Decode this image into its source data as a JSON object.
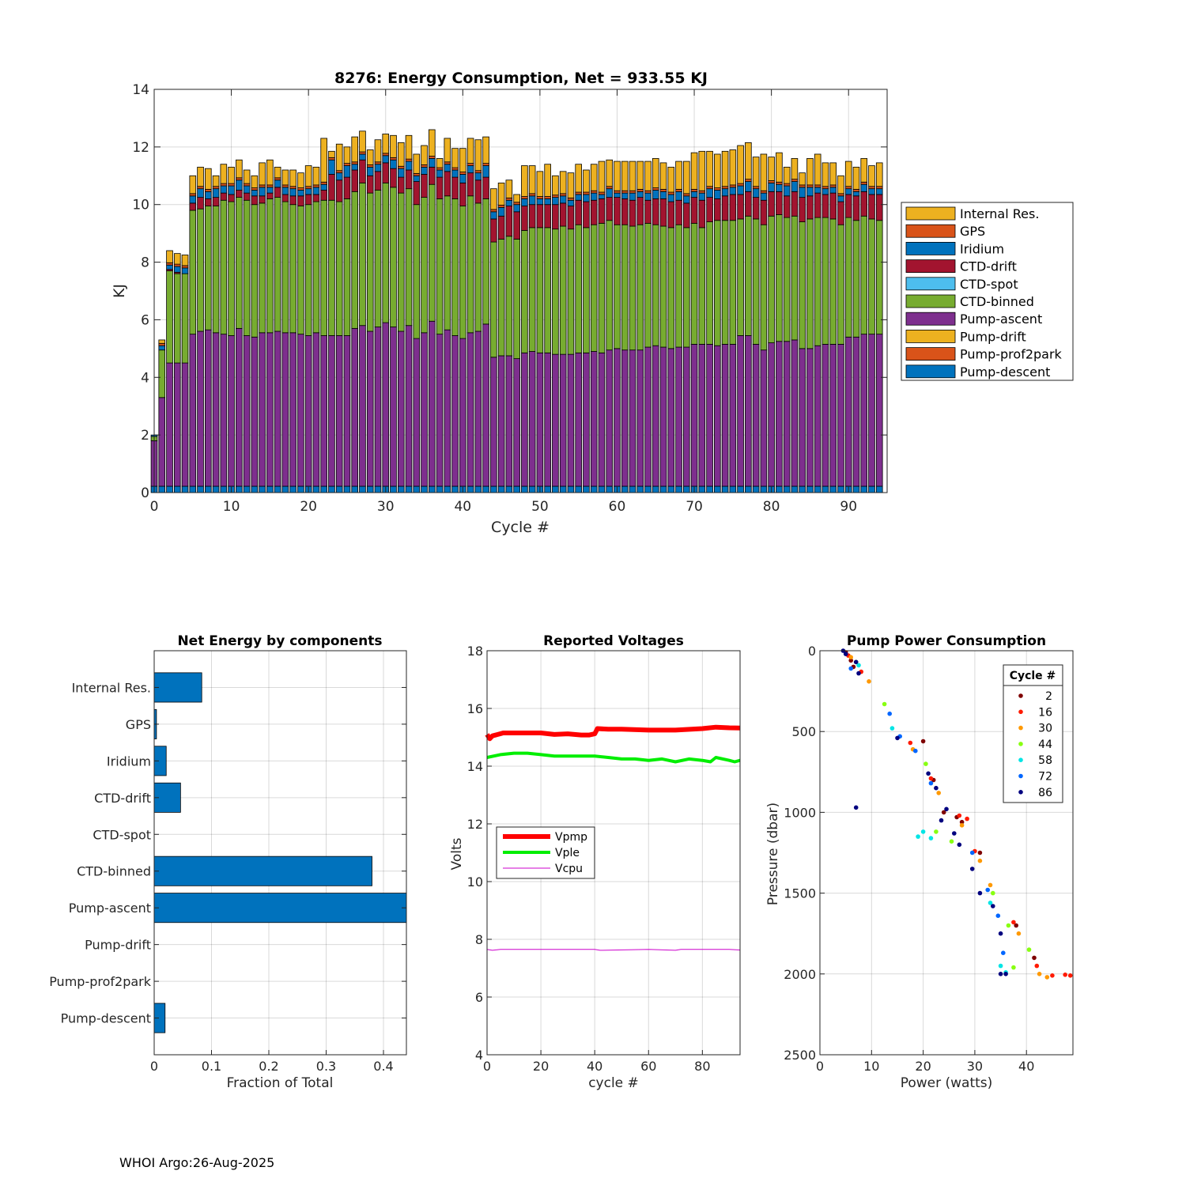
{
  "footer": "WHOI Argo:26-Aug-2025",
  "chart_data": [
    {
      "type": "stacked-bar",
      "title": "8276: Energy Consumption,  Net = 933.55 KJ",
      "xlabel": "Cycle #",
      "ylabel": "KJ",
      "xlim": [
        0,
        95
      ],
      "ylim": [
        0,
        14
      ],
      "xticks": [
        0,
        10,
        20,
        30,
        40,
        50,
        60,
        70,
        80,
        90
      ],
      "yticks": [
        0,
        2,
        4,
        6,
        8,
        10,
        12,
        14
      ],
      "legend": [
        "Internal Res.",
        "GPS",
        "Iridium",
        "CTD-drift",
        "CTD-spot",
        "CTD-binned",
        "Pump-ascent",
        "Pump-drift",
        "Pump-prof2park",
        "Pump-descent"
      ],
      "legend_position": "east-outside",
      "colors": {
        "Pump-descent": "#0072BD",
        "Pump-prof2park": "#D95319",
        "Pump-drift": "#EDB120",
        "Pump-ascent": "#7E2F8E",
        "CTD-binned": "#77AC30",
        "CTD-spot": "#4DBEEE",
        "CTD-drift": "#A2142F",
        "Iridium": "#0072BD",
        "GPS": "#D95319",
        "Internal Res.": "#EDB120"
      },
      "cycles": [
        0,
        1,
        2,
        3,
        4,
        5,
        6,
        7,
        8,
        9,
        10,
        11,
        12,
        13,
        14,
        15,
        16,
        17,
        18,
        19,
        20,
        21,
        22,
        23,
        24,
        25,
        26,
        27,
        28,
        29,
        30,
        31,
        32,
        33,
        34,
        35,
        36,
        37,
        38,
        39,
        40,
        41,
        42,
        43,
        44,
        45,
        46,
        47,
        48,
        49,
        50,
        51,
        52,
        53,
        54,
        55,
        56,
        57,
        58,
        59,
        60,
        61,
        62,
        63,
        64,
        65,
        66,
        67,
        68,
        69,
        70,
        71,
        72,
        73,
        74,
        75,
        76,
        77,
        78,
        79,
        80,
        81,
        82,
        83,
        84,
        85,
        86,
        87,
        88,
        89,
        90,
        91,
        92,
        93,
        94
      ],
      "totals": [
        2.0,
        5.3,
        8.4,
        8.3,
        8.25,
        11.0,
        11.3,
        11.25,
        11.0,
        11.4,
        11.3,
        11.55,
        11.2,
        11.0,
        11.45,
        11.55,
        11.3,
        11.2,
        11.2,
        11.1,
        11.35,
        11.3,
        12.3,
        11.85,
        12.1,
        12.0,
        12.35,
        12.55,
        11.9,
        12.25,
        12.45,
        12.4,
        12.15,
        12.4,
        11.75,
        12.05,
        12.6,
        11.6,
        12.3,
        11.95,
        11.95,
        12.3,
        12.25,
        12.35,
        10.55,
        10.75,
        10.85,
        10.35,
        11.35,
        11.35,
        11.15,
        11.4,
        11.0,
        11.15,
        11.1,
        11.4,
        11.2,
        11.4,
        11.5,
        11.55,
        11.5,
        11.5,
        11.5,
        11.5,
        11.5,
        11.6,
        11.45,
        11.3,
        11.5,
        11.5,
        11.8,
        11.85,
        11.85,
        11.75,
        11.85,
        11.9,
        12.05,
        12.15,
        11.65,
        11.75,
        11.65,
        11.8,
        11.3,
        11.6,
        11.1,
        11.6,
        11.75,
        11.45,
        11.45,
        11.0,
        11.5,
        11.3,
        11.6,
        11.35,
        11.45
      ],
      "pump_ascent_top": [
        1.8,
        3.3,
        4.5,
        4.5,
        4.5,
        5.5,
        5.6,
        5.65,
        5.55,
        5.5,
        5.45,
        5.7,
        5.45,
        5.4,
        5.55,
        5.55,
        5.6,
        5.55,
        5.55,
        5.5,
        5.45,
        5.55,
        5.45,
        5.45,
        5.45,
        5.45,
        5.7,
        5.8,
        5.6,
        5.75,
        5.9,
        5.75,
        5.6,
        5.8,
        5.35,
        5.55,
        5.95,
        5.5,
        5.65,
        5.45,
        5.35,
        5.55,
        5.6,
        5.85,
        4.7,
        4.75,
        4.75,
        4.65,
        4.85,
        4.9,
        4.85,
        4.85,
        4.8,
        4.8,
        4.8,
        4.85,
        4.85,
        4.9,
        4.85,
        4.95,
        5.0,
        4.95,
        4.95,
        4.95,
        5.05,
        5.1,
        5.05,
        5.0,
        5.05,
        5.05,
        5.15,
        5.15,
        5.15,
        5.1,
        5.15,
        5.15,
        5.45,
        5.45,
        5.15,
        4.95,
        5.2,
        5.25,
        5.25,
        5.3,
        5.0,
        5.0,
        5.1,
        5.15,
        5.15,
        5.15,
        5.4,
        5.4,
        5.5,
        5.5,
        5.5
      ],
      "ctd_binned_top": [
        1.95,
        4.95,
        7.7,
        7.6,
        7.6,
        9.8,
        9.85,
        9.95,
        9.95,
        10.15,
        10.1,
        10.25,
        10.15,
        10.0,
        10.05,
        10.2,
        10.25,
        10.1,
        10.0,
        9.95,
        10.0,
        10.1,
        10.15,
        10.15,
        10.1,
        10.2,
        10.45,
        10.75,
        10.4,
        10.5,
        10.75,
        10.6,
        10.4,
        10.55,
        10.0,
        10.25,
        10.7,
        10.2,
        10.3,
        10.2,
        9.95,
        10.3,
        10.05,
        10.2,
        8.7,
        8.8,
        8.9,
        8.8,
        9.1,
        9.2,
        9.2,
        9.2,
        9.15,
        9.25,
        9.15,
        9.3,
        9.2,
        9.3,
        9.35,
        9.45,
        9.3,
        9.3,
        9.25,
        9.3,
        9.35,
        9.3,
        9.25,
        9.2,
        9.3,
        9.2,
        9.35,
        9.2,
        9.4,
        9.45,
        9.45,
        9.45,
        9.5,
        9.6,
        9.5,
        9.3,
        9.6,
        9.65,
        9.55,
        9.6,
        9.4,
        9.5,
        9.55,
        9.55,
        9.5,
        9.3,
        9.55,
        9.45,
        9.6,
        9.5,
        9.45
      ],
      "ctd_drift_top": [
        1.95,
        4.95,
        7.75,
        7.65,
        7.6,
        10.05,
        10.25,
        10.2,
        10.25,
        10.4,
        10.35,
        10.5,
        10.4,
        10.3,
        10.3,
        10.4,
        10.6,
        10.35,
        10.3,
        10.3,
        10.35,
        10.35,
        10.5,
        11.05,
        10.85,
        10.95,
        11.2,
        11.55,
        11.0,
        11.15,
        11.45,
        11.25,
        10.95,
        11.2,
        10.8,
        11.05,
        11.3,
        10.95,
        11.15,
        10.95,
        10.75,
        11.1,
        10.85,
        10.95,
        9.5,
        9.6,
        9.95,
        9.75,
        9.95,
        10.0,
        10.0,
        10.0,
        10.0,
        10.05,
        9.95,
        10.15,
        10.1,
        10.15,
        10.2,
        10.25,
        10.25,
        10.2,
        10.15,
        10.25,
        10.15,
        10.2,
        10.2,
        10.1,
        10.15,
        10.05,
        10.25,
        10.15,
        10.25,
        10.2,
        10.3,
        10.35,
        10.35,
        10.45,
        10.25,
        10.15,
        10.45,
        10.45,
        10.3,
        10.45,
        10.25,
        10.3,
        10.4,
        10.35,
        10.4,
        10.1,
        10.35,
        10.3,
        10.45,
        10.35,
        10.35
      ],
      "iridium_top": [
        2.0,
        5.1,
        7.9,
        7.85,
        7.8,
        10.3,
        10.55,
        10.45,
        10.55,
        10.65,
        10.65,
        10.85,
        10.65,
        10.5,
        10.6,
        10.6,
        10.85,
        10.6,
        10.55,
        10.5,
        10.55,
        10.6,
        10.7,
        11.55,
        11.1,
        11.35,
        11.4,
        11.75,
        11.3,
        11.4,
        11.7,
        11.55,
        11.25,
        11.5,
        11.0,
        11.3,
        11.6,
        11.2,
        11.4,
        11.2,
        11.05,
        11.35,
        11.1,
        11.35,
        9.75,
        9.9,
        10.15,
        10.0,
        10.2,
        10.3,
        10.2,
        10.2,
        10.25,
        10.3,
        10.15,
        10.35,
        10.35,
        10.4,
        10.35,
        10.55,
        10.4,
        10.4,
        10.4,
        10.45,
        10.4,
        10.5,
        10.45,
        10.35,
        10.45,
        10.3,
        10.45,
        10.4,
        10.55,
        10.5,
        10.55,
        10.6,
        10.65,
        10.8,
        10.55,
        10.4,
        10.75,
        10.7,
        10.65,
        10.8,
        10.6,
        10.6,
        10.6,
        10.55,
        10.6,
        10.3,
        10.55,
        10.45,
        10.7,
        10.55,
        10.55
      ]
    },
    {
      "type": "horizontal-bar",
      "title": "Net Energy by components",
      "xlabel": "Fraction of Total",
      "xlim": [
        0,
        0.44
      ],
      "xticks": [
        0,
        0.1,
        0.2,
        0.3,
        0.4
      ],
      "categories": [
        "Internal Res.",
        "GPS",
        "Iridium",
        "CTD-drift",
        "CTD-spot",
        "CTD-binned",
        "Pump-ascent",
        "Pump-drift",
        "Pump-prof2park",
        "Pump-descent"
      ],
      "values": [
        0.083,
        0.004,
        0.021,
        0.046,
        0.0,
        0.38,
        0.445,
        0.0,
        0.0,
        0.019
      ],
      "color": "#0072BD"
    },
    {
      "type": "line",
      "title": "Reported Voltages",
      "xlabel": "cycle #",
      "ylabel": "Volts",
      "xlim": [
        0,
        94
      ],
      "ylim": [
        4,
        18
      ],
      "xticks": [
        0,
        20,
        40,
        60,
        80
      ],
      "yticks": [
        4,
        6,
        8,
        10,
        12,
        14,
        16,
        18
      ],
      "legend_position": "middle-left",
      "series": [
        {
          "name": "Vpmp",
          "color": "#FF0000",
          "x": [
            0,
            1,
            2,
            4,
            6,
            10,
            15,
            20,
            25,
            30,
            35,
            38,
            40,
            41,
            45,
            50,
            60,
            70,
            80,
            85,
            90,
            94
          ],
          "y": [
            15.1,
            14.95,
            15.05,
            15.1,
            15.15,
            15.15,
            15.15,
            15.15,
            15.1,
            15.12,
            15.08,
            15.08,
            15.12,
            15.3,
            15.28,
            15.28,
            15.25,
            15.25,
            15.3,
            15.35,
            15.33,
            15.32
          ]
        },
        {
          "name": "Vple",
          "color": "#00EE00",
          "x": [
            0,
            5,
            10,
            15,
            20,
            25,
            30,
            35,
            40,
            45,
            50,
            55,
            60,
            65,
            70,
            75,
            80,
            83,
            85,
            90,
            92,
            94
          ],
          "y": [
            14.3,
            14.4,
            14.45,
            14.45,
            14.4,
            14.35,
            14.35,
            14.35,
            14.35,
            14.3,
            14.25,
            14.25,
            14.2,
            14.25,
            14.15,
            14.25,
            14.2,
            14.15,
            14.3,
            14.2,
            14.15,
            14.2
          ]
        },
        {
          "name": "Vcpu",
          "color": "#CC00CC",
          "x": [
            0,
            2,
            5,
            20,
            40,
            42,
            60,
            70,
            72,
            90,
            94
          ],
          "y": [
            7.65,
            7.62,
            7.65,
            7.65,
            7.65,
            7.62,
            7.65,
            7.62,
            7.65,
            7.65,
            7.63
          ]
        }
      ]
    },
    {
      "type": "scatter",
      "title": "Pump Power Consumption",
      "xlabel": "Power (watts)",
      "ylabel": "Pressure (dbar)",
      "xlim": [
        0,
        49
      ],
      "ylim": [
        0,
        2500
      ],
      "y_reversed": true,
      "xticks": [
        0,
        10,
        20,
        30,
        40
      ],
      "yticks": [
        0,
        500,
        1000,
        1500,
        2000,
        2500
      ],
      "legend_title": "Cycle #",
      "legend_position": "top-right",
      "series": [
        {
          "name": "2",
          "color": "#7F0000",
          "points": [
            [
              5,
              10
            ],
            [
              6,
              60
            ],
            [
              6.5,
              100
            ],
            [
              20,
              560
            ],
            [
              22,
              800
            ],
            [
              24,
              1000
            ],
            [
              26.5,
              1030
            ],
            [
              27.5,
              1060
            ],
            [
              31,
              1250
            ],
            [
              38,
              1700
            ],
            [
              41.5,
              1900
            ]
          ]
        },
        {
          "name": "16",
          "color": "#FF1A00",
          "points": [
            [
              5.5,
              30
            ],
            [
              8,
              130
            ],
            [
              17.5,
              570
            ],
            [
              21.5,
              790
            ],
            [
              27,
              1020
            ],
            [
              28.5,
              1040
            ],
            [
              30,
              1240
            ],
            [
              37.5,
              1680
            ],
            [
              42,
              1950
            ],
            [
              45,
              2010
            ],
            [
              47.5,
              2005
            ],
            [
              48.5,
              2010
            ]
          ]
        },
        {
          "name": "30",
          "color": "#FF9900",
          "points": [
            [
              6,
              40
            ],
            [
              9.5,
              190
            ],
            [
              18,
              610
            ],
            [
              23,
              880
            ],
            [
              27.5,
              1080
            ],
            [
              31,
              1300
            ],
            [
              33,
              1450
            ],
            [
              38.5,
              1750
            ],
            [
              42.5,
              2000
            ],
            [
              44,
              2020
            ]
          ]
        },
        {
          "name": "44",
          "color": "#88FF11",
          "points": [
            [
              7,
              70
            ],
            [
              12.5,
              330
            ],
            [
              20.5,
              700
            ],
            [
              22.5,
              1120
            ],
            [
              25.5,
              1180
            ],
            [
              33.5,
              1500
            ],
            [
              36.5,
              1700
            ],
            [
              40.5,
              1850
            ],
            [
              37.5,
              1960
            ]
          ]
        },
        {
          "name": "58",
          "color": "#00E5E5",
          "points": [
            [
              7.5,
              90
            ],
            [
              14,
              480
            ],
            [
              19,
              1150
            ],
            [
              20,
              1120
            ],
            [
              21.5,
              1160
            ],
            [
              33,
              1560
            ],
            [
              36,
              1990
            ],
            [
              35,
              1950
            ]
          ]
        },
        {
          "name": "72",
          "color": "#0066FF",
          "points": [
            [
              6,
              110
            ],
            [
              13.5,
              390
            ],
            [
              15.5,
              530
            ],
            [
              18.5,
              620
            ],
            [
              21.5,
              820
            ],
            [
              29.5,
              1250
            ],
            [
              32.5,
              1480
            ],
            [
              34.5,
              1640
            ],
            [
              35.5,
              1870
            ]
          ]
        },
        {
          "name": "86",
          "color": "#00007F",
          "points": [
            [
              4.5,
              0
            ],
            [
              5,
              20
            ],
            [
              7,
              70
            ],
            [
              7.5,
              140
            ],
            [
              15,
              540
            ],
            [
              21,
              760
            ],
            [
              22.5,
              850
            ],
            [
              24.5,
              980
            ],
            [
              23.5,
              1050
            ],
            [
              26,
              1130
            ],
            [
              27,
              1200
            ],
            [
              29.5,
              1350
            ],
            [
              31,
              1500
            ],
            [
              33.5,
              1580
            ],
            [
              35,
              1750
            ],
            [
              36,
              2000
            ],
            [
              35,
              2000
            ],
            [
              7,
              970
            ]
          ]
        }
      ]
    }
  ]
}
